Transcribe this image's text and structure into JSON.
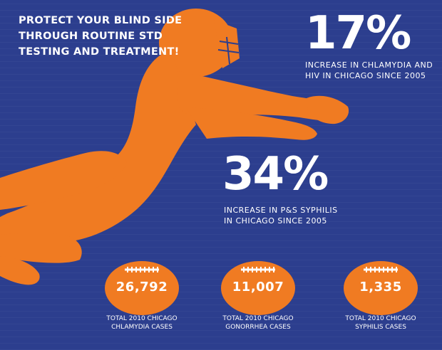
{
  "headline": {
    "line1": "PROTECT YOUR BLIND SIDE",
    "line2": "THROUGH ROUTINE STD",
    "line3": "TESTING AND TREATMENT!"
  },
  "stats": [
    {
      "value": "17%",
      "desc_line1": "INCREASE IN CHLAMYDIA AND",
      "desc_line2": "HIV IN CHICAGO SINCE 2005"
    },
    {
      "value": "34%",
      "desc_line1": "INCREASE IN P&S SYPHILIS",
      "desc_line2": "IN CHICAGO SINCE 2005"
    }
  ],
  "footballs": [
    {
      "value": "26,792",
      "caption_line1": "TOTAL 2010 CHICAGO",
      "caption_line2": "CHLAMYDIA CASES"
    },
    {
      "value": "11,007",
      "caption_line1": "TOTAL 2010 CHICAGO",
      "caption_line2": "GONORRHEA CASES"
    },
    {
      "value": "1,335",
      "caption_line1": "TOTAL 2010 CHICAGO",
      "caption_line2": "SYPHILIS CASES"
    }
  ],
  "colors": {
    "background": "#2c3e8e",
    "accent": "#f07b22",
    "text": "#ffffff"
  },
  "icons": [
    "football-player-silhouette-icon",
    "football-icon"
  ]
}
